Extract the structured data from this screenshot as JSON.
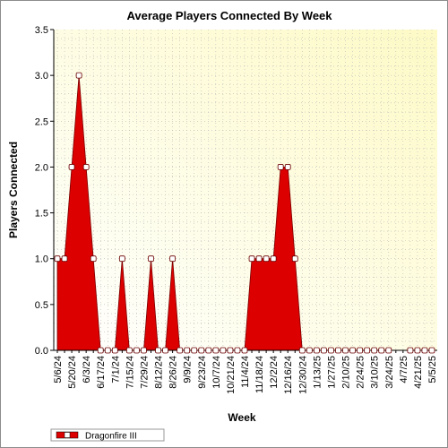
{
  "chart_data": {
    "type": "area",
    "title": "Average Players Connected By Week",
    "xlabel": "Week",
    "ylabel": "Players Connected",
    "ylim": [
      0,
      3.5
    ],
    "yticks": [
      "0.0",
      "0.5",
      "1.0",
      "1.5",
      "2.0",
      "2.5",
      "3.0",
      "3.5"
    ],
    "grid": true,
    "legend_position": "bottom-left",
    "xticks": [
      "5/6/24",
      "5/20/24",
      "6/3/24",
      "6/17/24",
      "7/1/24",
      "7/15/24",
      "7/29/24",
      "8/12/24",
      "8/26/24",
      "9/9/24",
      "9/23/24",
      "10/7/24",
      "10/21/24",
      "11/4/24",
      "11/18/24",
      "12/2/24",
      "12/16/24",
      "12/30/24",
      "1/13/25",
      "1/27/25",
      "2/10/25",
      "2/24/25",
      "3/10/25",
      "3/24/25",
      "4/7/25",
      "4/21/25",
      "5/5/25"
    ],
    "x": [
      "5/6/24",
      "5/13/24",
      "5/20/24",
      "5/27/24",
      "6/3/24",
      "6/10/24",
      "6/17/24",
      "6/24/24",
      "7/1/24",
      "7/8/24",
      "7/15/24",
      "7/22/24",
      "7/29/24",
      "8/5/24",
      "8/12/24",
      "8/19/24",
      "8/26/24",
      "9/2/24",
      "9/9/24",
      "9/16/24",
      "9/23/24",
      "9/30/24",
      "10/7/24",
      "10/14/24",
      "10/21/24",
      "10/28/24",
      "11/4/24",
      "11/11/24",
      "11/18/24",
      "11/25/24",
      "12/2/24",
      "12/9/24",
      "12/16/24",
      "12/23/24",
      "12/30/24",
      "1/6/25",
      "1/13/25",
      "1/20/25",
      "1/27/25",
      "2/3/25",
      "2/10/25",
      "2/17/25",
      "2/24/25",
      "3/3/25",
      "3/10/25",
      "3/17/25",
      "3/24/25",
      "3/31/25",
      "4/7/25",
      "4/14/25",
      "4/21/25",
      "4/28/25",
      "5/5/25"
    ],
    "series": [
      {
        "name": "Dragonfire III",
        "color": "#dd0000",
        "values": [
          1,
          1,
          2,
          3,
          2,
          1,
          0,
          0,
          0,
          1,
          0,
          0,
          0,
          1,
          0,
          0,
          1,
          0,
          0,
          0,
          0,
          0,
          0,
          0,
          0,
          0,
          0,
          1,
          1,
          1,
          1,
          2,
          2,
          1,
          0,
          0,
          0,
          0,
          0,
          0,
          0,
          0,
          0,
          0,
          0,
          0,
          0,
          null,
          null,
          0,
          0,
          0,
          0
        ]
      }
    ]
  }
}
